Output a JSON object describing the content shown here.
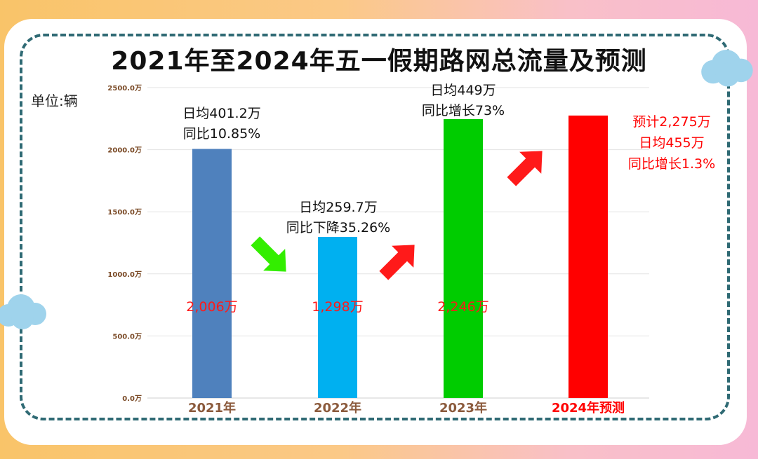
{
  "title": "2021年至2024年五一假期路网总流量及预测",
  "unit_label": "单位:辆",
  "colors": {
    "accent_text": "#ff0000",
    "axis_text": "#7a4a26",
    "border": "#2f6a74"
  },
  "chart_data": {
    "type": "bar",
    "categories": [
      "2021年",
      "2022年",
      "2023年",
      "2024年预测"
    ],
    "values": [
      2006,
      1298,
      2246,
      2275
    ],
    "value_labels": [
      "2,006万",
      "1,298万",
      "2,246万",
      ""
    ],
    "bar_colors": [
      "#4f81bd",
      "#00b0f0",
      "#00cc00",
      "#ff0000"
    ],
    "category_colors": [
      "#8b5a3c",
      "#8b5a3c",
      "#8b5a3c",
      "#ff0000"
    ],
    "annotations": [
      [
        "日均401.2万",
        "同比10.85%"
      ],
      [
        "日均259.7万",
        "同比下降35.26%"
      ],
      [
        "日均449万",
        "同比增长73%"
      ],
      [
        "预计2,275万",
        "日均455万",
        "同比增长1.3%"
      ]
    ],
    "annotation_colors": [
      "#111111",
      "#111111",
      "#111111",
      "#ff0000"
    ],
    "trend_arrows": [
      "down",
      "up",
      "up"
    ],
    "arrow_colors": [
      "#33ee00",
      "#ff1a1a",
      "#ff1a1a"
    ],
    "yticks": [
      "0.0万",
      "500.0万",
      "1000.0万",
      "1500.0万",
      "2000.0万",
      "2500.0万"
    ],
    "ylim": [
      0,
      2500
    ],
    "grid": true
  }
}
